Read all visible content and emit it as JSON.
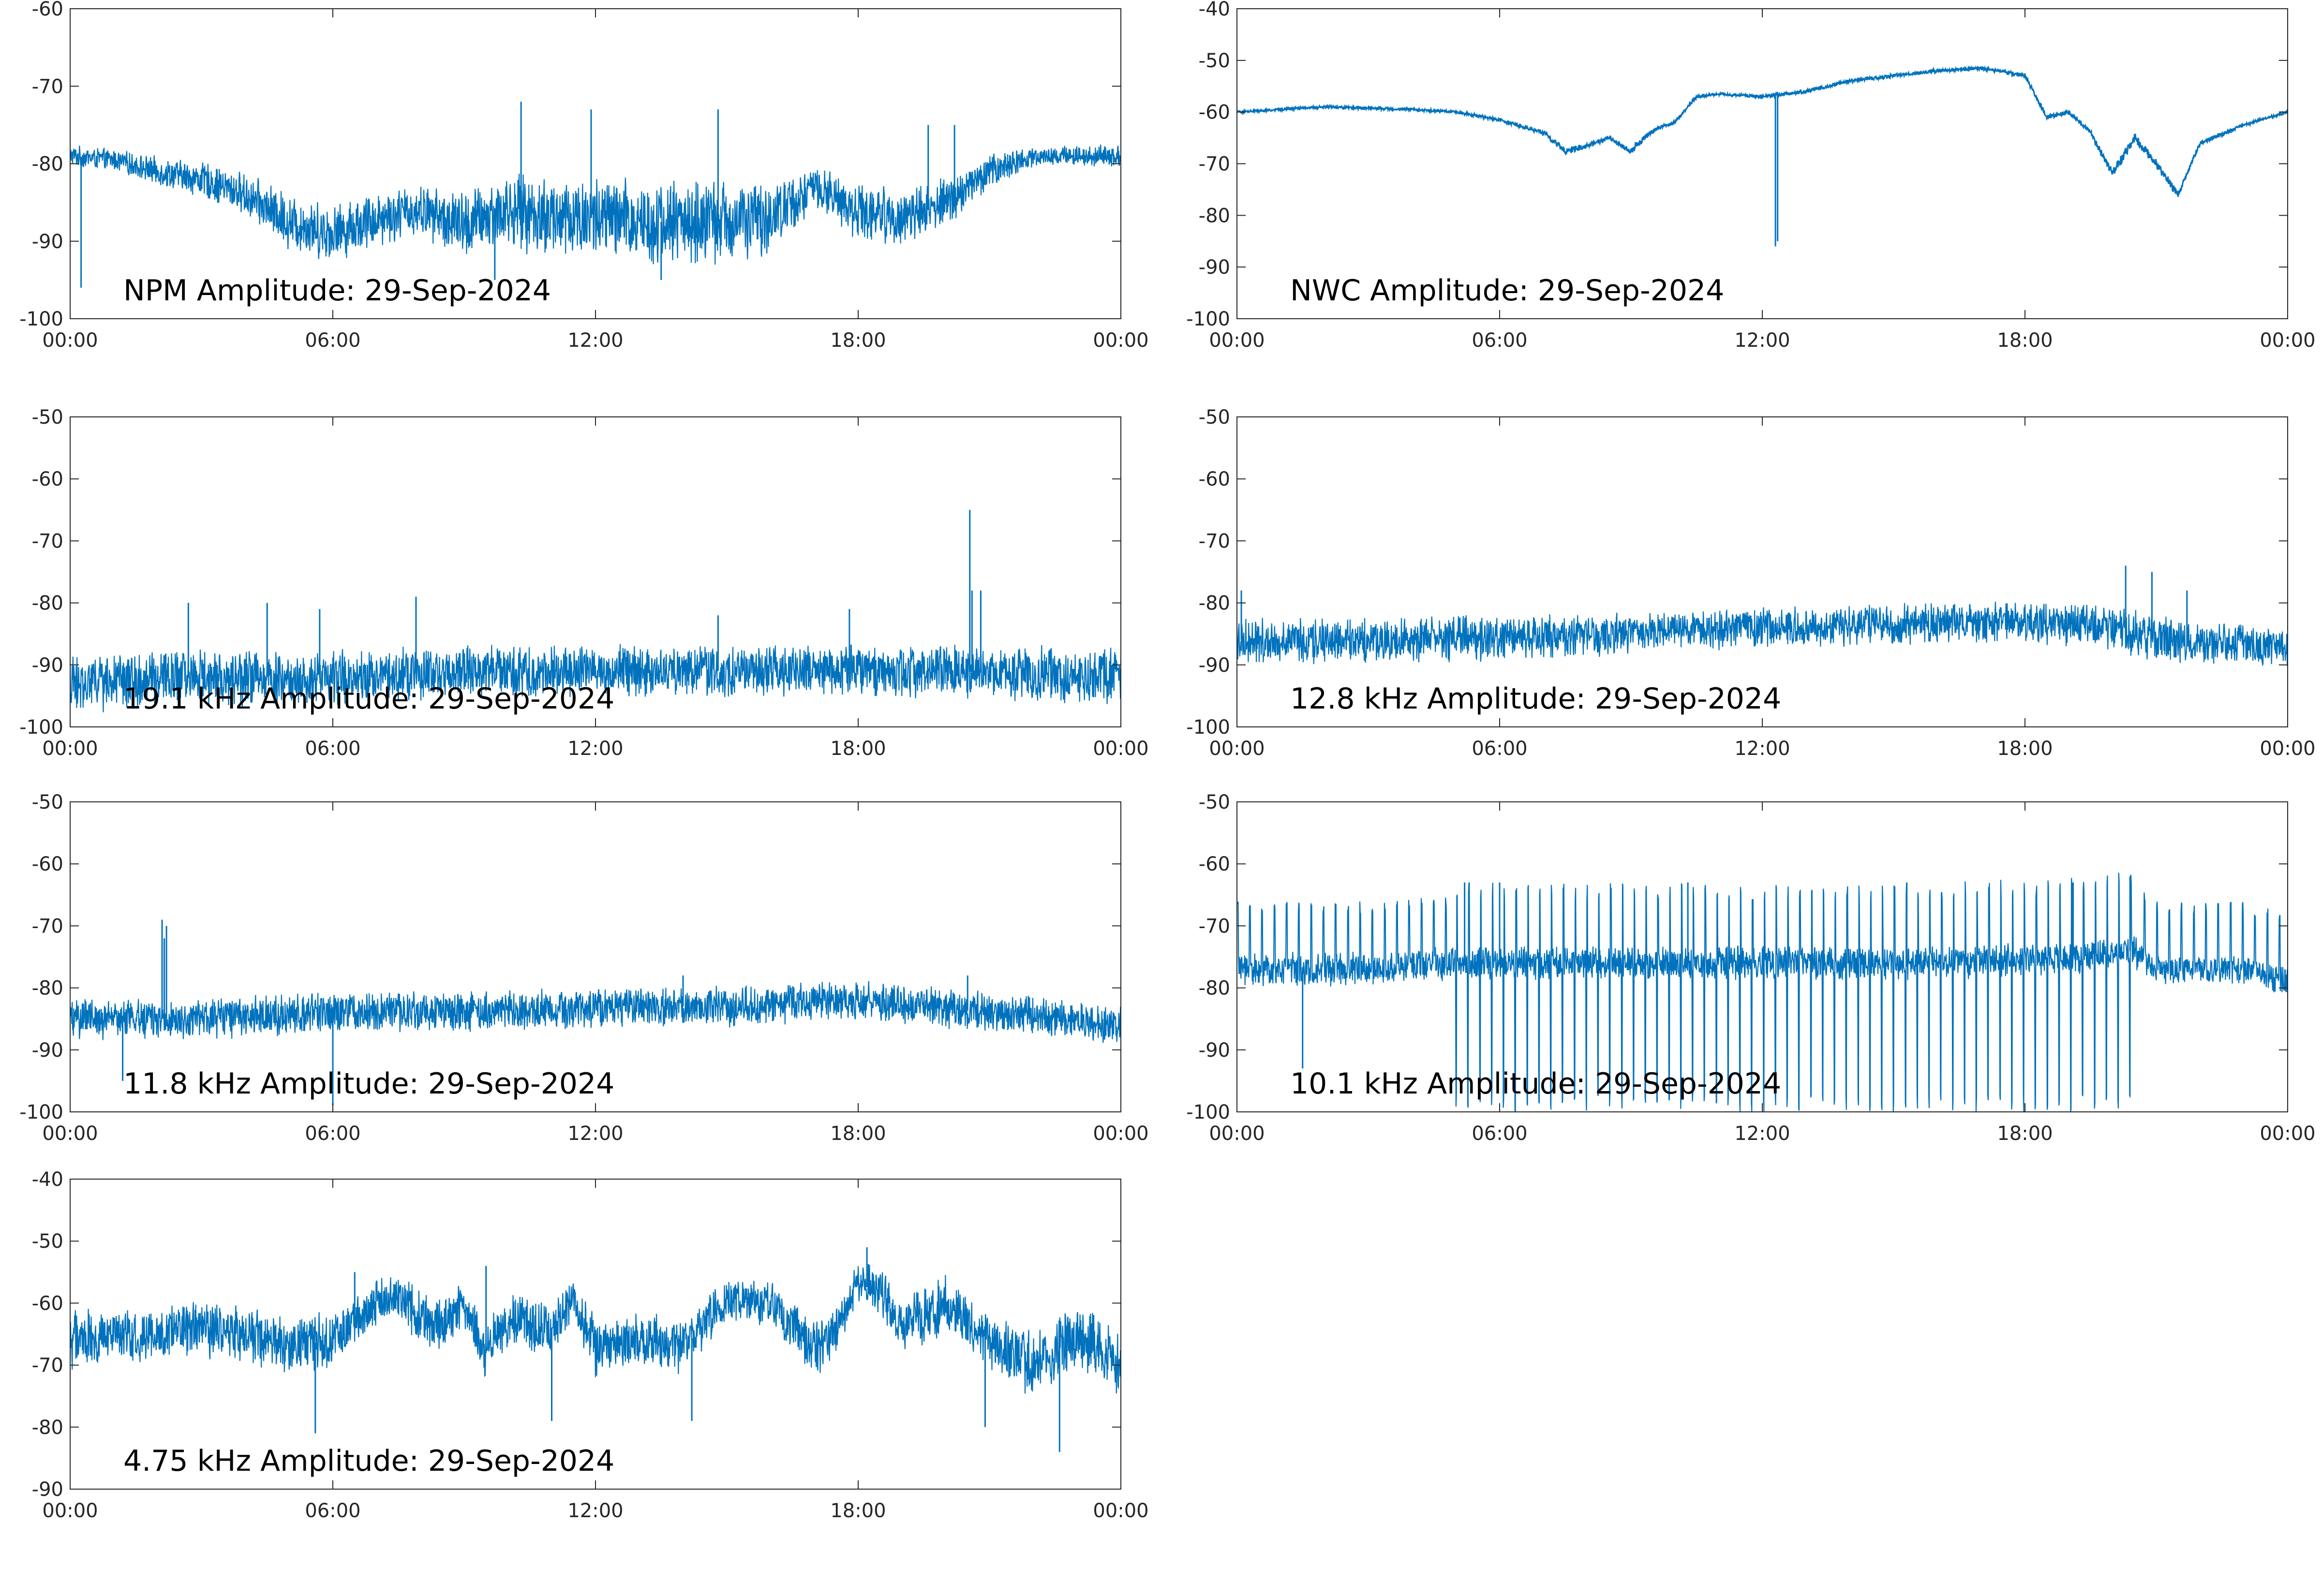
{
  "figure": {
    "line_color": "#0072bd",
    "x_tick_labels": [
      "00:00",
      "06:00",
      "12:00",
      "18:00",
      "00:00"
    ]
  },
  "chart_data": [
    {
      "type": "line",
      "annotation": "NPM Amplitude: 29-Sep-2024",
      "xlim": [
        0,
        24
      ],
      "ylim": [
        -100,
        -60
      ],
      "y_ticks": [
        -60,
        -70,
        -80,
        -90,
        -100
      ],
      "y_tick_labels": [
        "-60",
        "-70",
        "-80",
        "-90",
        "-100"
      ],
      "grid": false,
      "x_hours": [
        0,
        1,
        2,
        3,
        4,
        5,
        6,
        7,
        8,
        9,
        10,
        11,
        12,
        13,
        14,
        15,
        16,
        17,
        18,
        19,
        20,
        21,
        22,
        23,
        24
      ],
      "center": [
        -79,
        -79.5,
        -81,
        -82,
        -84,
        -87.5,
        -89,
        -87,
        -86,
        -88,
        -86,
        -87,
        -87,
        -87.5,
        -87.5,
        -87.5,
        -87,
        -83,
        -86,
        -87,
        -85,
        -81,
        -79,
        -79,
        -79
      ],
      "spread": [
        1.5,
        1.5,
        2,
        2.5,
        3,
        4,
        4,
        4,
        3.5,
        5,
        5,
        6,
        6,
        6,
        6,
        6,
        5,
        3,
        4,
        4,
        3.5,
        2.5,
        1.5,
        1.5,
        1.5
      ],
      "spikes": [
        [
          0.25,
          -96
        ],
        [
          10.3,
          -72
        ],
        [
          11.9,
          -73
        ],
        [
          14.8,
          -73
        ],
        [
          19.6,
          -75
        ],
        [
          20.2,
          -75
        ],
        [
          9.7,
          -95
        ],
        [
          13.5,
          -95
        ]
      ]
    },
    {
      "type": "line",
      "annotation": "NWC Amplitude: 29-Sep-2024",
      "xlim": [
        0,
        24
      ],
      "ylim": [
        -100,
        -40
      ],
      "y_ticks": [
        -40,
        -50,
        -60,
        -70,
        -80,
        -90,
        -100
      ],
      "y_tick_labels": [
        "-40",
        "-50",
        "-60",
        "-70",
        "-80",
        "-90",
        "-100"
      ],
      "grid": false,
      "x_hours": [
        0,
        2,
        4,
        5,
        6,
        7,
        7.5,
        8,
        8.5,
        9,
        9.5,
        10,
        10.5,
        11,
        12,
        13,
        14,
        15,
        16,
        17,
        18,
        18.5,
        19,
        19.5,
        20,
        20.5,
        21,
        21.5,
        22,
        23,
        24
      ],
      "center": [
        -60,
        -59,
        -59.5,
        -60,
        -61.5,
        -64,
        -67.5,
        -66.5,
        -65,
        -67.5,
        -63.5,
        -62,
        -57,
        -56.5,
        -57,
        -56,
        -54,
        -53,
        -52,
        -51.5,
        -53,
        -61,
        -60,
        -64,
        -72,
        -65,
        -70,
        -76,
        -66,
        -62.5,
        -60
      ],
      "spread": [
        0.3,
        0.3,
        0.3,
        0.3,
        0.4,
        0.5,
        0.8,
        0.6,
        0.5,
        0.8,
        0.5,
        0.4,
        0.4,
        0.3,
        0.4,
        0.4,
        0.4,
        0.4,
        0.4,
        0.4,
        0.5,
        0.6,
        0.5,
        0.6,
        1,
        1.2,
        1,
        0.8,
        0.5,
        0.3,
        0.3
      ],
      "spikes": [
        [
          12.3,
          -86
        ],
        [
          12.35,
          -85
        ]
      ]
    },
    {
      "type": "line",
      "annotation": "19.1 kHz Amplitude: 29-Sep-2024",
      "xlim": [
        0,
        24
      ],
      "ylim": [
        -100,
        -50
      ],
      "y_ticks": [
        -50,
        -60,
        -70,
        -80,
        -90,
        -100
      ],
      "y_tick_labels": [
        "-50",
        "-60",
        "-70",
        "-80",
        "-90",
        "-100"
      ],
      "grid": false,
      "x_hours": [
        0,
        3,
        6,
        9,
        12,
        15,
        18,
        20,
        24
      ],
      "center": [
        -93,
        -92,
        -92,
        -91,
        -91,
        -91,
        -91,
        -91,
        -92
      ],
      "spread": [
        5,
        5,
        5,
        4.5,
        4.5,
        4.5,
        4.5,
        4.5,
        5
      ],
      "spikes": [
        [
          20.55,
          -65
        ],
        [
          20.6,
          -78
        ],
        [
          20.8,
          -78
        ],
        [
          2.7,
          -80
        ],
        [
          4.5,
          -80
        ],
        [
          5.7,
          -81
        ],
        [
          7.9,
          -79
        ],
        [
          14.8,
          -82
        ],
        [
          17.8,
          -81
        ]
      ]
    },
    {
      "type": "line",
      "annotation": "12.8 kHz Amplitude: 29-Sep-2024",
      "xlim": [
        0,
        24
      ],
      "ylim": [
        -100,
        -50
      ],
      "y_ticks": [
        -50,
        -60,
        -70,
        -80,
        -90,
        -100
      ],
      "y_tick_labels": [
        "-50",
        "-60",
        "-70",
        "-80",
        "-90",
        "-100"
      ],
      "grid": false,
      "x_hours": [
        0,
        3,
        6,
        9,
        12,
        15,
        18,
        20,
        21,
        24
      ],
      "center": [
        -86,
        -86,
        -85.5,
        -85,
        -84,
        -83.5,
        -83,
        -84,
        -86,
        -87
      ],
      "spread": [
        4,
        4,
        4,
        3.5,
        3.5,
        3.5,
        3.5,
        4,
        4,
        3.5
      ],
      "spikes": [
        [
          20.3,
          -74
        ],
        [
          20.9,
          -75
        ],
        [
          0.1,
          -78
        ],
        [
          21.7,
          -78
        ]
      ]
    },
    {
      "type": "line",
      "annotation": "11.8 kHz Amplitude: 29-Sep-2024",
      "xlim": [
        0,
        24
      ],
      "ylim": [
        -100,
        -50
      ],
      "y_ticks": [
        -50,
        -60,
        -70,
        -80,
        -90,
        -100
      ],
      "y_tick_labels": [
        "-50",
        "-60",
        "-70",
        "-80",
        "-90",
        "-100"
      ],
      "grid": false,
      "x_hours": [
        0,
        3,
        6,
        9,
        12,
        15,
        18,
        21,
        24
      ],
      "center": [
        -85,
        -85,
        -84,
        -84,
        -83,
        -83,
        -82,
        -84,
        -86
      ],
      "spread": [
        3.5,
        3.5,
        3.5,
        3.5,
        3.5,
        3.5,
        3.5,
        3.5,
        3.5
      ],
      "spikes": [
        [
          2.1,
          -69
        ],
        [
          2.15,
          -72
        ],
        [
          2.2,
          -70
        ],
        [
          1.2,
          -95
        ],
        [
          6,
          -99
        ],
        [
          14,
          -78
        ],
        [
          20.5,
          -78
        ]
      ]
    },
    {
      "type": "line",
      "annotation": "10.1 kHz Amplitude: 29-Sep-2024",
      "xlim": [
        0,
        24
      ],
      "ylim": [
        -100,
        -50
      ],
      "y_ticks": [
        -50,
        -60,
        -70,
        -80,
        -90,
        -100
      ],
      "y_tick_labels": [
        "-50",
        "-60",
        "-70",
        "-80",
        "-90",
        "-100"
      ],
      "grid": false,
      "x_hours": [
        0,
        3,
        5,
        7,
        10,
        13,
        16,
        19,
        20.5,
        21,
        23,
        24
      ],
      "center": [
        -77,
        -77,
        -76,
        -76,
        -76,
        -76,
        -76,
        -75,
        -74,
        -77,
        -77,
        -79
      ],
      "spread": [
        3,
        3,
        3,
        3,
        3,
        3,
        3,
        3,
        3,
        2.5,
        2.5,
        3
      ],
      "spikes": [
        [
          5.2,
          -63
        ],
        [
          6,
          -63
        ],
        [
          10.3,
          -63
        ],
        [
          15.3,
          -63
        ],
        [
          19.1,
          -63
        ],
        [
          20.4,
          -62
        ],
        [
          1.5,
          -93
        ]
      ],
      "burst_period_hours": 0.27,
      "burst_low": -100,
      "burst_start": 5.0,
      "burst_end": 20.6
    },
    {
      "type": "line",
      "annotation": "4.75 kHz Amplitude: 29-Sep-2024",
      "xlim": [
        0,
        24
      ],
      "ylim": [
        -90,
        -40
      ],
      "y_ticks": [
        -40,
        -50,
        -60,
        -70,
        -80,
        -90
      ],
      "y_tick_labels": [
        "-40",
        "-50",
        "-60",
        "-70",
        "-80",
        "-90"
      ],
      "grid": false,
      "x_hours": [
        0,
        1,
        2,
        3,
        4,
        5,
        6,
        7,
        7.5,
        8,
        8.5,
        9,
        9.5,
        10,
        11,
        11.5,
        12,
        13,
        14,
        15,
        16,
        17,
        17.5,
        18,
        18.5,
        19,
        20,
        21,
        22,
        23,
        24
      ],
      "center": [
        -66,
        -65,
        -65.5,
        -64,
        -65,
        -67,
        -66,
        -60,
        -59,
        -62,
        -64,
        -60,
        -68,
        -63,
        -64,
        -60,
        -67,
        -66,
        -67,
        -60,
        -60,
        -68,
        -64,
        -57,
        -58,
        -64,
        -60,
        -66,
        -70,
        -65,
        -70
      ],
      "spread": [
        5,
        5,
        5,
        5,
        5,
        5,
        5,
        4,
        4,
        5,
        5,
        4,
        5,
        5,
        5,
        4,
        5,
        5,
        5,
        4,
        4,
        5,
        4,
        4,
        4,
        5,
        5,
        5,
        6,
        6,
        6
      ],
      "spikes": [
        [
          6.5,
          -55
        ],
        [
          9.5,
          -54
        ],
        [
          18.2,
          -51
        ],
        [
          5.6,
          -81
        ],
        [
          11,
          -79
        ],
        [
          14.2,
          -79
        ],
        [
          20.9,
          -80
        ],
        [
          22.6,
          -84
        ]
      ]
    }
  ]
}
